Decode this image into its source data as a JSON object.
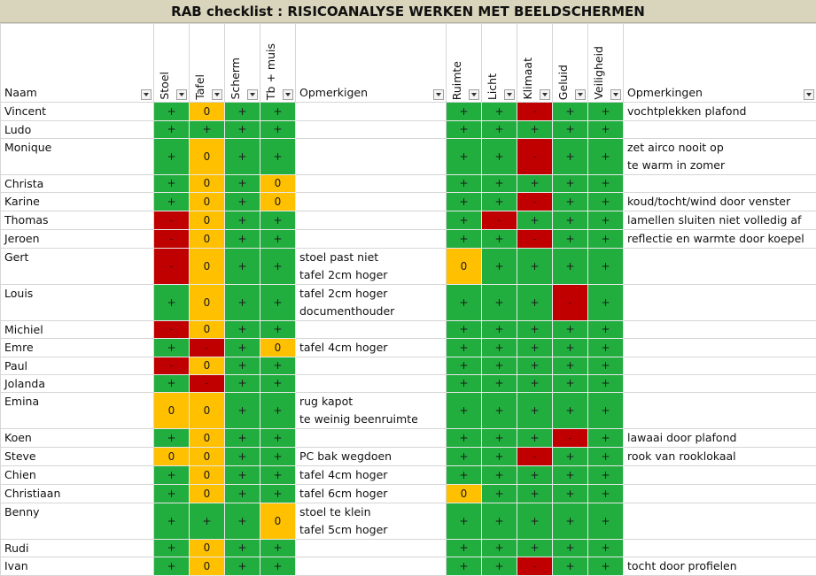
{
  "title": "RAB checklist : RISICOANALYSE WERKEN MET BEELDSCHERMEN",
  "columns": [
    "Naam",
    "Stoel",
    "Tafel",
    "Scherm",
    "Tb + muis",
    "Opmerkigen",
    "Ruimte",
    "Licht",
    "Klimaat",
    "Geluid",
    "Veiligheid",
    "Opmerkingen"
  ],
  "status_colors": {
    "+": "#22ad3f",
    "0": "#ffc000",
    "-": "#c00000"
  },
  "rows": [
    [
      "Vincent",
      "+",
      "0",
      "+",
      "+",
      null,
      "+",
      "+",
      "-",
      "+",
      "+",
      [
        "vochtplekken plafond"
      ]
    ],
    [
      "Ludo",
      "+",
      "+",
      "+",
      "+",
      null,
      "+",
      "+",
      "+",
      "+",
      "+",
      null
    ],
    [
      "Monique",
      "+",
      "0",
      "+",
      "+",
      null,
      "+",
      "+",
      "-",
      "+",
      "+",
      [
        "zet airco nooit op",
        "te warm in zomer"
      ]
    ],
    [
      "Christa",
      "+",
      "0",
      "+",
      "0",
      null,
      "+",
      "+",
      "+",
      "+",
      "+",
      null
    ],
    [
      "Karine",
      "+",
      "0",
      "+",
      "0",
      null,
      "+",
      "+",
      "-",
      "+",
      "+",
      [
        "koud/tocht/wind door venster"
      ]
    ],
    [
      "Thomas",
      "-",
      "0",
      "+",
      "+",
      null,
      "+",
      "-",
      "+",
      "+",
      "+",
      [
        "lamellen sluiten niet volledig af"
      ]
    ],
    [
      "Jeroen",
      "-",
      "0",
      "+",
      "+",
      null,
      "+",
      "+",
      "-",
      "+",
      "+",
      [
        "reflectie en warmte door koepel"
      ]
    ],
    [
      "Gert",
      "-",
      "0",
      "+",
      "+",
      [
        "stoel past niet",
        "tafel 2cm hoger"
      ],
      "0",
      "+",
      "+",
      "+",
      "+",
      null
    ],
    [
      "Louis",
      "+",
      "0",
      "+",
      "+",
      [
        "tafel 2cm hoger",
        "documenthouder"
      ],
      "+",
      "+",
      "+",
      "-",
      "+",
      null
    ],
    [
      "Michiel",
      "-",
      "0",
      "+",
      "+",
      null,
      "+",
      "+",
      "+",
      "+",
      "+",
      null
    ],
    [
      "Emre",
      "+",
      "-",
      "+",
      "0",
      [
        "tafel 4cm hoger"
      ],
      "+",
      "+",
      "+",
      "+",
      "+",
      null
    ],
    [
      "Paul",
      "-",
      "0",
      "+",
      "+",
      null,
      "+",
      "+",
      "+",
      "+",
      "+",
      null
    ],
    [
      "Jolanda",
      "+",
      "-",
      "+",
      "+",
      null,
      "+",
      "+",
      "+",
      "+",
      "+",
      null
    ],
    [
      "Emina",
      "0",
      "0",
      "+",
      "+",
      [
        "rug kapot",
        "te weinig beenruimte"
      ],
      "+",
      "+",
      "+",
      "+",
      "+",
      null
    ],
    [
      "Koen",
      "+",
      "0",
      "+",
      "+",
      null,
      "+",
      "+",
      "+",
      "-",
      "+",
      [
        "lawaai door plafond"
      ]
    ],
    [
      "Steve",
      "0",
      "0",
      "+",
      "+",
      [
        "PC bak wegdoen"
      ],
      "+",
      "+",
      "-",
      "+",
      "+",
      [
        "rook van rooklokaal"
      ]
    ],
    [
      "Chien",
      "+",
      "0",
      "+",
      "+",
      [
        "tafel 4cm hoger"
      ],
      "+",
      "+",
      "+",
      "+",
      "+",
      null
    ],
    [
      "Christiaan",
      "+",
      "0",
      "+",
      "+",
      [
        "tafel 6cm hoger"
      ],
      "0",
      "+",
      "+",
      "+",
      "+",
      null
    ],
    [
      "Benny",
      "+",
      "+",
      "+",
      "0",
      [
        "stoel te klein",
        "tafel 5cm hoger"
      ],
      "+",
      "+",
      "+",
      "+",
      "+",
      null
    ],
    [
      "Rudi",
      "+",
      "0",
      "+",
      "+",
      null,
      "+",
      "+",
      "+",
      "+",
      "+",
      null
    ],
    [
      "Ivan",
      "+",
      "0",
      "+",
      "+",
      null,
      "+",
      "+",
      "-",
      "+",
      "+",
      [
        "tocht door profielen"
      ]
    ]
  ]
}
